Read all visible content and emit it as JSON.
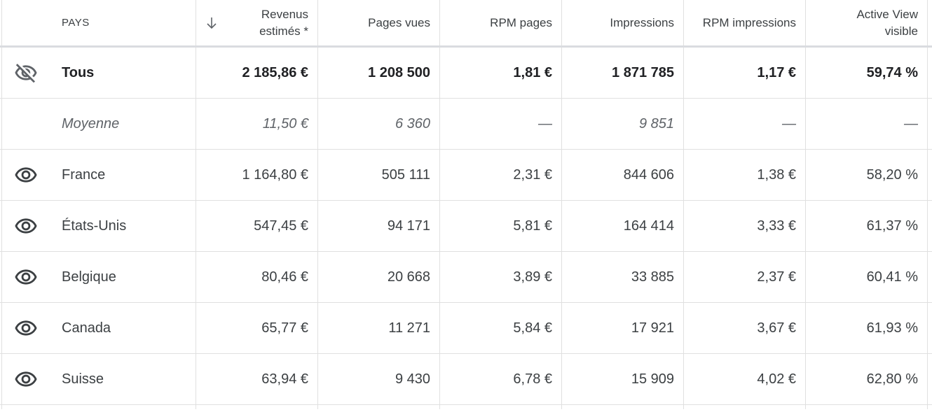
{
  "header": {
    "country": "PAYS",
    "revenue_line1": "Revenus",
    "revenue_line2": "estimés *",
    "pageviews": "Pages vues",
    "rpm_pages": "RPM pages",
    "impressions": "Impressions",
    "rpm_impressions": "RPM impressions",
    "active_view_line1": "Active View",
    "active_view_line2": "visible"
  },
  "total": {
    "label": "Tous",
    "revenue": "2 185,86 €",
    "pageviews": "1 208 500",
    "rpm_pages": "1,81 €",
    "impressions": "1 871 785",
    "rpm_impressions": "1,17 €",
    "active_view": "59,74 %"
  },
  "average": {
    "label": "Moyenne",
    "revenue": "11,50 €",
    "pageviews": "6 360",
    "rpm_pages": "—",
    "impressions": "9 851",
    "rpm_impressions": "—",
    "active_view": "—"
  },
  "rows": [
    {
      "country": "France",
      "revenue": "1 164,80 €",
      "pageviews": "505 111",
      "rpm_pages": "2,31 €",
      "impressions": "844 606",
      "rpm_impressions": "1,38 €",
      "active_view": "58,20 %"
    },
    {
      "country": "États-Unis",
      "revenue": "547,45 €",
      "pageviews": "94 171",
      "rpm_pages": "5,81 €",
      "impressions": "164 414",
      "rpm_impressions": "3,33 €",
      "active_view": "61,37 %"
    },
    {
      "country": "Belgique",
      "revenue": "80,46 €",
      "pageviews": "20 668",
      "rpm_pages": "3,89 €",
      "impressions": "33 885",
      "rpm_impressions": "2,37 €",
      "active_view": "60,41 %"
    },
    {
      "country": "Canada",
      "revenue": "65,77 €",
      "pageviews": "11 271",
      "rpm_pages": "5,84 €",
      "impressions": "17 921",
      "rpm_impressions": "3,67 €",
      "active_view": "61,93 %"
    },
    {
      "country": "Suisse",
      "revenue": "63,94 €",
      "pageviews": "9 430",
      "rpm_pages": "6,78 €",
      "impressions": "15 909",
      "rpm_impressions": "4,02 €",
      "active_view": "62,80 %"
    }
  ],
  "icons": {
    "total_visibility": "eye-off-icon",
    "row_visibility": "eye-icon",
    "sort": "arrow-down-icon"
  },
  "colors": {
    "text": "#3c4043",
    "text_strong": "#202124",
    "text_muted": "#5f6368",
    "grid": "#e0e0e0"
  }
}
